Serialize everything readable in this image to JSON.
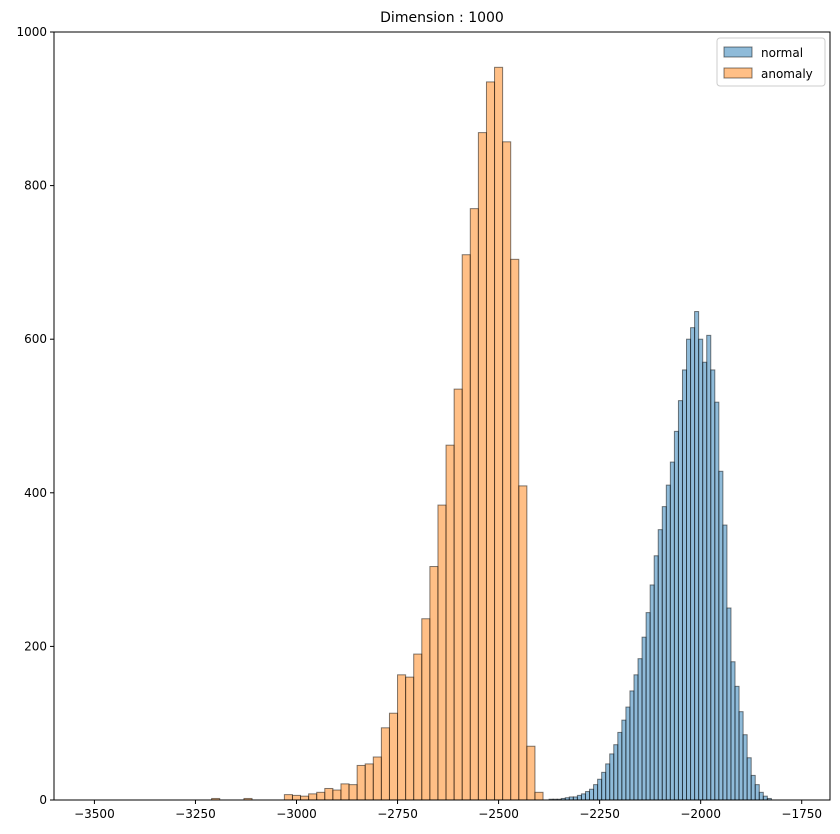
{
  "chart_data": {
    "type": "bar",
    "subtype": "histogram",
    "title": "Dimension : 1000",
    "xlabel": "",
    "ylabel": "",
    "xlim": [
      -3600,
      -1680
    ],
    "ylim": [
      0,
      1000
    ],
    "xticks": [
      -3500,
      -3250,
      -3000,
      -2750,
      -2500,
      -2250,
      -2000,
      -1750
    ],
    "xtick_labels": [
      "−3500",
      "−3250",
      "−3000",
      "−2750",
      "−2500",
      "−2250",
      "−2000",
      "−1750"
    ],
    "yticks": [
      0,
      200,
      400,
      600,
      800,
      1000
    ],
    "ytick_labels": [
      "0",
      "200",
      "400",
      "600",
      "800",
      "1000"
    ],
    "grid": false,
    "legend_position": "top-right",
    "series": [
      {
        "name": "normal",
        "color": "#1f77b4",
        "alpha": 0.5,
        "edgecolor": "#000000",
        "bin_start": -2375,
        "bin_width": 10,
        "values": [
          1,
          1,
          1,
          2,
          3,
          4,
          4,
          6,
          8,
          11,
          14,
          20,
          27,
          36,
          47,
          60,
          72,
          88,
          104,
          121,
          142,
          163,
          184,
          212,
          244,
          280,
          318,
          352,
          382,
          410,
          440,
          480,
          520,
          560,
          600,
          615,
          636,
          600,
          570,
          605,
          560,
          518,
          428,
          358,
          250,
          180,
          148,
          115,
          85,
          55,
          32,
          20,
          10,
          5,
          2
        ]
      },
      {
        "name": "anomaly",
        "color": "#ff7f0e",
        "alpha": 0.5,
        "edgecolor": "#000000",
        "bin_start": -3550,
        "bin_width": 20,
        "values": [
          0,
          0,
          0,
          0,
          0,
          0,
          0,
          0,
          0,
          0,
          0,
          0,
          0,
          0,
          0,
          0,
          0,
          2,
          0,
          0,
          0,
          2,
          0,
          0,
          0,
          0,
          7,
          6,
          5,
          8,
          10,
          15,
          13,
          21,
          20,
          45,
          47,
          56,
          94,
          113,
          163,
          160,
          190,
          236,
          304,
          384,
          462,
          535,
          710,
          770,
          869,
          935,
          954,
          857,
          704,
          409,
          70,
          10
        ]
      }
    ]
  }
}
